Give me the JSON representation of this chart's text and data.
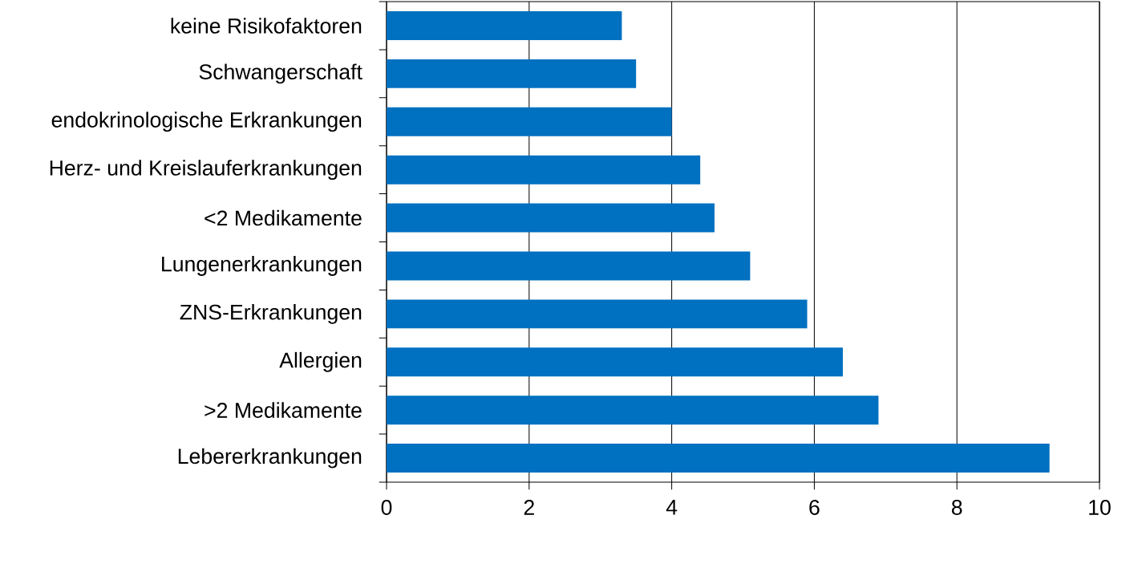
{
  "chart_data": {
    "type": "bar",
    "orientation": "horizontal",
    "categories": [
      "keine Risikofaktoren",
      "Schwangerschaft",
      "endokrinologische Erkrankungen",
      "Herz- und Kreislauferkrankungen",
      "<2 Medikamente",
      "Lungenerkrankungen",
      "ZNS-Erkrankungen",
      "Allergien",
      ">2 Medikamente",
      "Lebererkrankungen"
    ],
    "values": [
      3.3,
      3.5,
      4.0,
      4.4,
      4.6,
      5.1,
      5.9,
      6.4,
      6.9,
      9.3
    ],
    "color": "#0070c0",
    "xlim": [
      0,
      10
    ],
    "xticks": [
      0,
      2,
      4,
      6,
      8,
      10
    ],
    "grid": "x"
  }
}
